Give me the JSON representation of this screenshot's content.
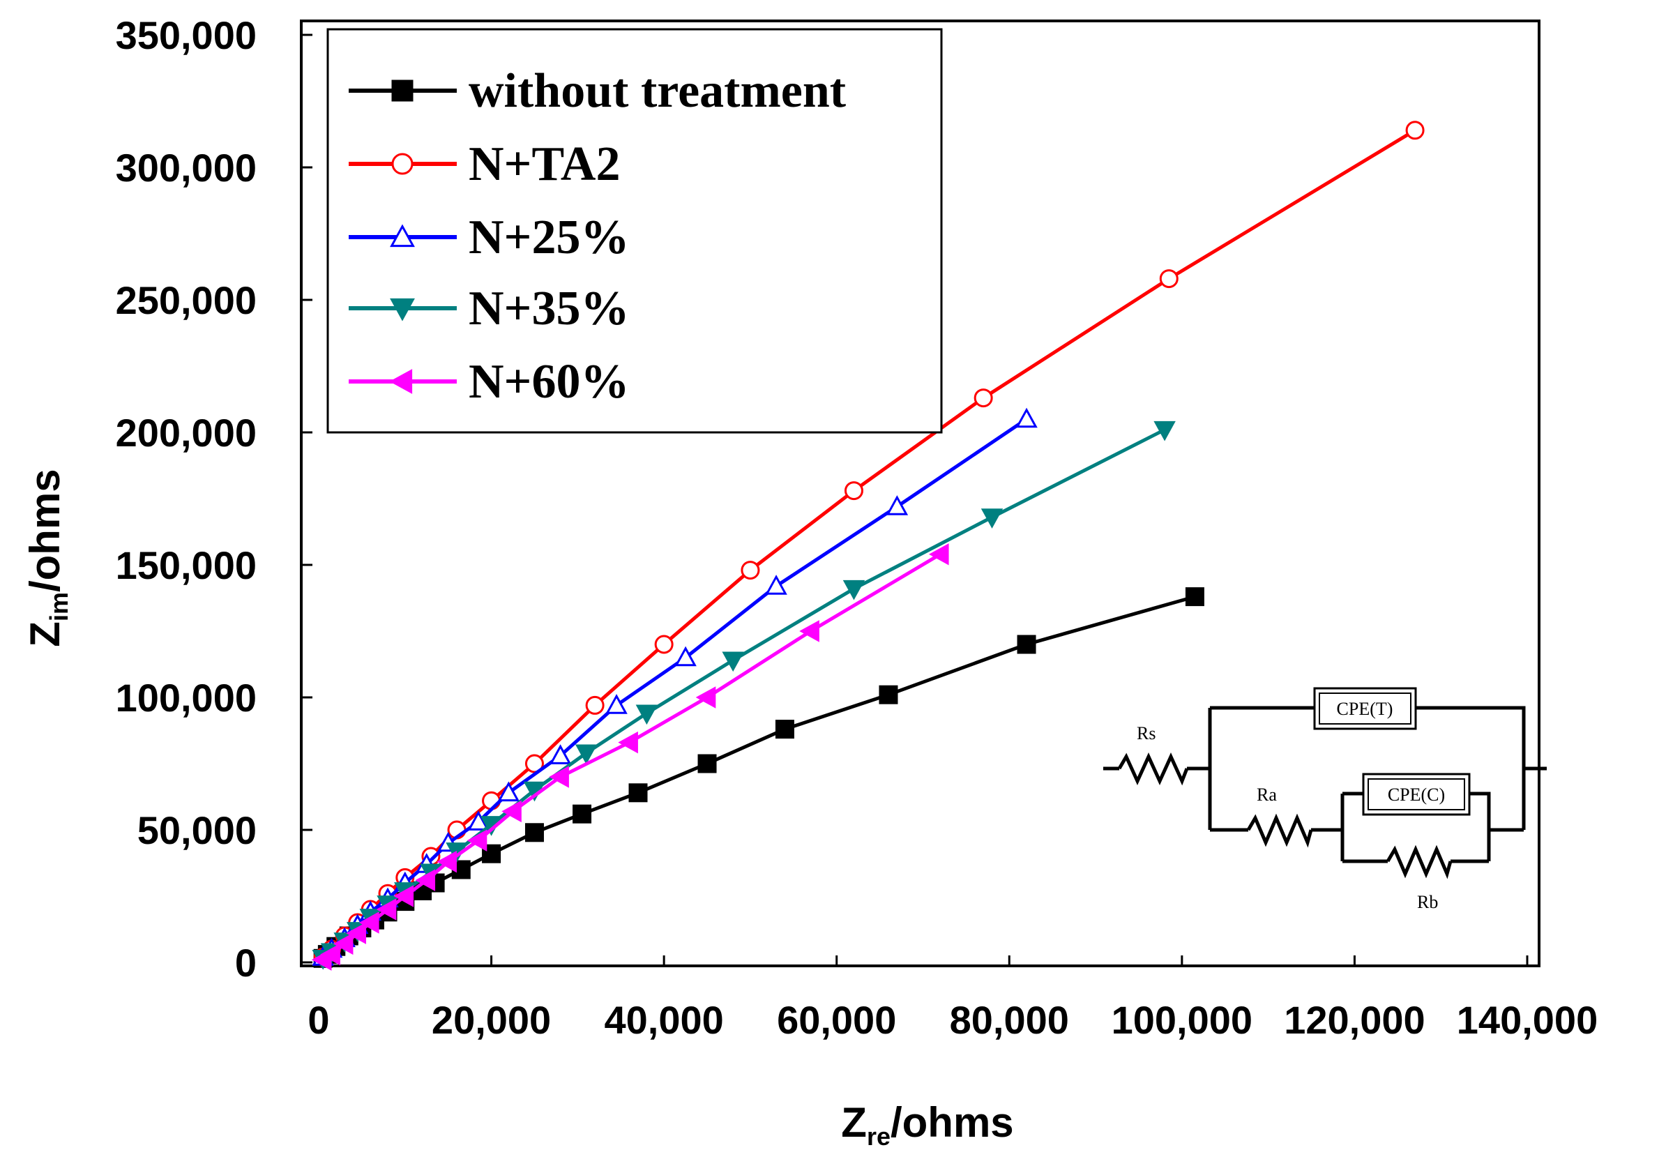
{
  "chart_data": {
    "type": "scatter",
    "title": "",
    "xlabel": "Z_re/ohms",
    "xlabel_main": "Z",
    "xlabel_sub": "re",
    "xlabel_unit": "/ohms",
    "ylabel": "Z_im/ohms",
    "ylabel_main": "Z",
    "ylabel_sub": "im",
    "ylabel_unit": "/ohms",
    "xlim": [
      0,
      140000
    ],
    "ylim": [
      0,
      350000
    ],
    "x_ticks": [
      {
        "value": 0,
        "label": "0"
      },
      {
        "value": 20000,
        "label": "20,000"
      },
      {
        "value": 40000,
        "label": "40,000"
      },
      {
        "value": 60000,
        "label": "60,000"
      },
      {
        "value": 80000,
        "label": "80,000"
      },
      {
        "value": 100000,
        "label": "100,000"
      },
      {
        "value": 120000,
        "label": "120,000"
      },
      {
        "value": 140000,
        "label": "140,000"
      }
    ],
    "y_ticks": [
      {
        "value": 0,
        "label": "0"
      },
      {
        "value": 50000,
        "label": "50,000"
      },
      {
        "value": 100000,
        "label": "100,000"
      },
      {
        "value": 150000,
        "label": "150,000"
      },
      {
        "value": 200000,
        "label": "200,000"
      },
      {
        "value": 250000,
        "label": "250,000"
      },
      {
        "value": 300000,
        "label": "300,000"
      },
      {
        "value": 350000,
        "label": "350,000"
      }
    ],
    "legend_position": "top-left",
    "series": [
      {
        "name": "without treatment",
        "color": "#000000",
        "marker": "square-filled",
        "x": [
          500,
          1000,
          2000,
          3500,
          5000,
          6500,
          8000,
          10000,
          12000,
          13500,
          16500,
          20000,
          25000,
          30500,
          37000,
          45000,
          54000,
          66000,
          82000,
          101500
        ],
        "y": [
          1500,
          3000,
          6000,
          10000,
          13000,
          16000,
          19000,
          23000,
          27000,
          30000,
          35000,
          41000,
          49000,
          56000,
          64000,
          75000,
          88000,
          101000,
          120000,
          138000
        ]
      },
      {
        "name": "N+TA2",
        "color": "#ff0000",
        "marker": "circle-open",
        "x": [
          500,
          1500,
          3000,
          4500,
          6000,
          8000,
          10000,
          13000,
          16000,
          20000,
          25000,
          32000,
          40000,
          50000,
          62000,
          77000,
          98500,
          127000
        ],
        "y": [
          2000,
          5000,
          10000,
          15000,
          20000,
          26000,
          32000,
          40000,
          50000,
          61000,
          75000,
          97000,
          120000,
          148000,
          178000,
          213000,
          258000,
          314000
        ]
      },
      {
        "name": "N+25%",
        "color": "#0000ff",
        "marker": "triangle-up-open",
        "x": [
          500,
          1500,
          3000,
          4500,
          6000,
          8000,
          10000,
          12500,
          15000,
          18500,
          22000,
          28000,
          34500,
          42500,
          53000,
          67000,
          82000
        ],
        "y": [
          2000,
          5000,
          9000,
          14000,
          19000,
          24000,
          30000,
          37000,
          45000,
          53000,
          64000,
          78000,
          97000,
          115000,
          142000,
          172000,
          205000
        ]
      },
      {
        "name": "N+35%",
        "color": "#008080",
        "marker": "triangle-down-filled",
        "x": [
          500,
          1500,
          3000,
          4500,
          6000,
          8000,
          10000,
          13000,
          16000,
          20000,
          25000,
          31000,
          38000,
          48000,
          62000,
          78000,
          98000
        ],
        "y": [
          1500,
          4000,
          8000,
          12000,
          17000,
          22000,
          27000,
          34000,
          42000,
          52000,
          65000,
          79000,
          94000,
          114000,
          141000,
          168000,
          201000
        ]
      },
      {
        "name": "N+60%",
        "color": "#ff00ff",
        "marker": "triangle-left-filled",
        "x": [
          500,
          1500,
          3000,
          4500,
          6000,
          8000,
          10000,
          12500,
          15000,
          18500,
          22500,
          28000,
          36000,
          45000,
          57000,
          72000
        ],
        "y": [
          1000,
          3000,
          7000,
          11000,
          15000,
          20000,
          25000,
          31000,
          38000,
          46000,
          57000,
          70000,
          83000,
          100000,
          125000,
          154000
        ]
      }
    ]
  },
  "circuit": {
    "rs_label": "Rs",
    "ra_label": "Ra",
    "rb_label": "Rb",
    "cpe_t_label": "CPE(T)",
    "cpe_c_label": "CPE(C)"
  }
}
